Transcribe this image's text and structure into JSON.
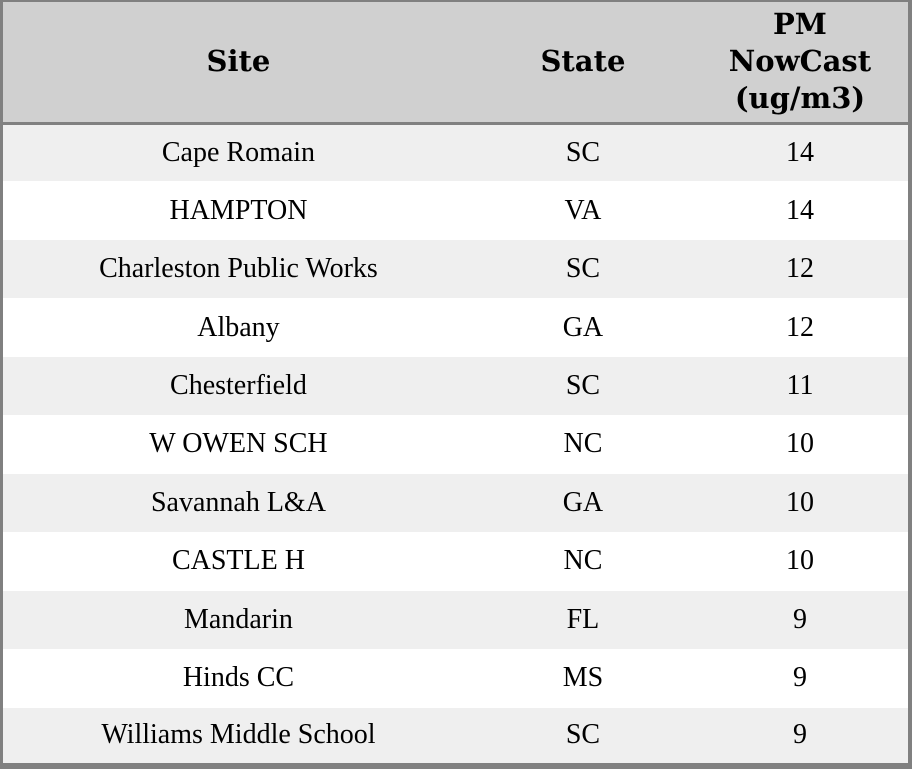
{
  "colors": {
    "header_bg": "#d0d0d0",
    "stripe_row_bg": "#efefef",
    "plain_row_bg": "#ffffff",
    "border": "#808080",
    "text": "#000000"
  },
  "table": {
    "columns": [
      {
        "label": "Site"
      },
      {
        "label": "State"
      },
      {
        "label": "PM NowCast (ug/m3)"
      }
    ],
    "rows": [
      {
        "site": "Cape Romain",
        "state": "SC",
        "pm_nowcast": "14"
      },
      {
        "site": "HAMPTON",
        "state": "VA",
        "pm_nowcast": "14"
      },
      {
        "site": "Charleston Public Works",
        "state": "SC",
        "pm_nowcast": "12"
      },
      {
        "site": "Albany",
        "state": "GA",
        "pm_nowcast": "12"
      },
      {
        "site": "Chesterfield",
        "state": "SC",
        "pm_nowcast": "11"
      },
      {
        "site": "W OWEN SCH",
        "state": "NC",
        "pm_nowcast": "10"
      },
      {
        "site": "Savannah L&A",
        "state": "GA",
        "pm_nowcast": "10"
      },
      {
        "site": "CASTLE H",
        "state": "NC",
        "pm_nowcast": "10"
      },
      {
        "site": "Mandarin",
        "state": "FL",
        "pm_nowcast": "9"
      },
      {
        "site": "Hinds CC",
        "state": "MS",
        "pm_nowcast": "9"
      },
      {
        "site": "Williams Middle School",
        "state": "SC",
        "pm_nowcast": "9"
      }
    ]
  },
  "chart_data": {
    "type": "table",
    "title": "",
    "columns": [
      "Site",
      "State",
      "PM NowCast (ug/m3)"
    ],
    "rows": [
      [
        "Cape Romain",
        "SC",
        14
      ],
      [
        "HAMPTON",
        "VA",
        14
      ],
      [
        "Charleston Public Works",
        "SC",
        12
      ],
      [
        "Albany",
        "GA",
        12
      ],
      [
        "Chesterfield",
        "SC",
        11
      ],
      [
        "W OWEN SCH",
        "NC",
        10
      ],
      [
        "Savannah L&A",
        "GA",
        10
      ],
      [
        "CASTLE H",
        "NC",
        10
      ],
      [
        "Mandarin",
        "FL",
        9
      ],
      [
        "Hinds CC",
        "MS",
        9
      ],
      [
        "Williams Middle School",
        "SC",
        9
      ]
    ]
  }
}
